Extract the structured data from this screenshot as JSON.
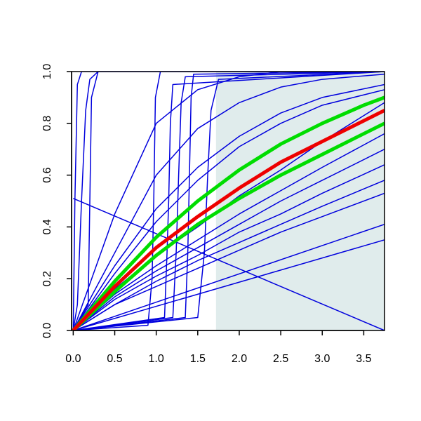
{
  "chart_data": {
    "type": "line",
    "xlim": [
      -0.02,
      3.75
    ],
    "ylim": [
      0,
      1.0
    ],
    "xticks": [
      {
        "value": 0,
        "label": "0.0"
      },
      0.5,
      {
        "value": 1,
        "label": "1.0"
      },
      1.5,
      {
        "value": 2,
        "label": "2.0"
      },
      2.5,
      {
        "value": 3,
        "label": "3.0"
      },
      3.5
    ],
    "yticks": [
      {
        "value": 0,
        "label": "0.0"
      },
      0.2,
      0.4,
      0.6,
      0.8,
      {
        "value": 1,
        "label": "1.0"
      }
    ],
    "shaded_region": {
      "xlim": [
        1.72,
        3.75
      ],
      "color": "#e0ecec"
    },
    "series": [
      {
        "color": "#0000dd",
        "width": 1.5,
        "x": [
          0,
          0.02,
          0.05,
          0.1,
          3.75
        ],
        "values": [
          0,
          0.5,
          0.95,
          1,
          1
        ]
      },
      {
        "color": "#0000dd",
        "width": 1.5,
        "x": [
          0,
          0.05,
          0.1,
          0.15,
          0.2,
          0.3,
          3.75
        ],
        "values": [
          0,
          0.1,
          0.5,
          0.85,
          0.97,
          1,
          1
        ]
      },
      {
        "color": "#0000dd",
        "width": 1.5,
        "x": [
          0,
          0.18,
          0.2,
          0.22,
          0.3,
          3.75
        ],
        "values": [
          0,
          0.1,
          0.5,
          0.9,
          1,
          1
        ]
      },
      {
        "color": "#0000dd",
        "width": 1.5,
        "x": [
          0,
          0.9,
          0.95,
          0.97,
          0.99,
          1.05,
          3.75
        ],
        "values": [
          0,
          0.02,
          0.2,
          0.5,
          0.9,
          1,
          1
        ]
      },
      {
        "color": "#0000dd",
        "width": 1.5,
        "x": [
          0,
          1.1,
          1.13,
          1.15,
          1.17,
          1.2,
          3.75
        ],
        "values": [
          0,
          0.05,
          0.3,
          0.5,
          0.8,
          0.95,
          1
        ]
      },
      {
        "color": "#0000dd",
        "width": 1.5,
        "x": [
          0,
          1.2,
          1.24,
          1.27,
          1.3,
          1.35,
          3.75
        ],
        "values": [
          0,
          0.05,
          0.3,
          0.6,
          0.88,
          0.98,
          1
        ]
      },
      {
        "color": "#0000dd",
        "width": 1.5,
        "x": [
          0,
          1.35,
          1.38,
          1.4,
          1.42,
          1.45,
          3.75
        ],
        "values": [
          0,
          0.05,
          0.3,
          0.6,
          0.9,
          0.99,
          1
        ]
      },
      {
        "color": "#0000dd",
        "width": 1.5,
        "x": [
          0,
          1.5,
          1.58,
          1.62,
          1.66,
          1.75,
          3.75
        ],
        "values": [
          0,
          0.05,
          0.3,
          0.6,
          0.85,
          0.97,
          1
        ]
      },
      {
        "color": "#0000dd",
        "width": 1.5,
        "x": [
          0,
          0.5,
          1,
          1.5,
          2,
          2.5,
          3,
          3.75
        ],
        "values": [
          0,
          0.45,
          0.8,
          0.93,
          0.98,
          1,
          1,
          1
        ]
      },
      {
        "color": "#0000dd",
        "width": 1.5,
        "x": [
          0,
          0.5,
          1,
          1.5,
          2,
          2.5,
          3,
          3.75
        ],
        "values": [
          0,
          0.3,
          0.6,
          0.78,
          0.88,
          0.94,
          0.97,
          0.99
        ]
      },
      {
        "color": "#0000dd",
        "width": 1.5,
        "x": [
          0,
          0.5,
          1,
          1.5,
          2,
          2.5,
          3,
          3.75
        ],
        "values": [
          0,
          0.25,
          0.47,
          0.63,
          0.75,
          0.84,
          0.9,
          0.95
        ]
      },
      {
        "color": "#0000dd",
        "width": 1.5,
        "x": [
          0,
          0.5,
          1,
          1.5,
          2,
          2.5,
          3,
          3.75
        ],
        "values": [
          0,
          0.22,
          0.42,
          0.58,
          0.71,
          0.8,
          0.87,
          0.93
        ]
      },
      {
        "color": "#0000dd",
        "width": 1.5,
        "x": [
          0,
          0.5,
          1,
          1.5,
          2,
          2.5,
          3,
          3.75
        ],
        "values": [
          0,
          0.16,
          0.29,
          0.4,
          0.52,
          0.62,
          0.73,
          0.88
        ]
      },
      {
        "color": "#0000dd",
        "width": 1.5,
        "x": [
          0,
          0.5,
          1,
          1.5,
          2,
          2.5,
          3,
          3.75
        ],
        "values": [
          0,
          0.14,
          0.25,
          0.35,
          0.45,
          0.54,
          0.63,
          0.76
        ]
      },
      {
        "color": "#0000dd",
        "width": 1.5,
        "x": [
          0,
          0.5,
          1,
          1.5,
          2,
          2.5,
          3,
          3.75
        ],
        "values": [
          0,
          0.13,
          0.23,
          0.32,
          0.41,
          0.5,
          0.58,
          0.7
        ]
      },
      {
        "color": "#0000dd",
        "width": 1.5,
        "x": [
          0,
          0.5,
          1,
          1.5,
          2,
          2.5,
          3,
          3.75
        ],
        "values": [
          0,
          0.12,
          0.21,
          0.29,
          0.38,
          0.45,
          0.53,
          0.64
        ]
      },
      {
        "color": "#0000dd",
        "width": 1.5,
        "x": [
          0,
          0.5,
          1,
          1.5,
          2,
          2.5,
          3,
          3.75
        ],
        "values": [
          0,
          0.1,
          0.19,
          0.27,
          0.34,
          0.41,
          0.48,
          0.58
        ]
      },
      {
        "color": "#0000dd",
        "width": 1.5,
        "x": [
          0,
          0.5,
          1,
          1.5,
          2,
          2.5,
          3,
          3.75
        ],
        "values": [
          0,
          0.1,
          0.17,
          0.24,
          0.31,
          0.38,
          0.44,
          0.53
        ]
      },
      {
        "color": "#0000dd",
        "width": 1.5,
        "x": [
          0,
          3.75
        ],
        "values": [
          0,
          0.41
        ]
      },
      {
        "color": "#0000dd",
        "width": 1.5,
        "x": [
          0,
          3.75
        ],
        "values": [
          0,
          0.35
        ]
      },
      {
        "color": "#0000dd",
        "width": 1.5,
        "x": [
          0,
          3.75
        ],
        "values": [
          0.51,
          0
        ]
      },
      {
        "color": "#00dd00",
        "width": 5,
        "x": [
          0,
          0.5,
          1,
          1.5,
          2,
          2.5,
          3,
          3.5,
          3.75
        ],
        "values": [
          0,
          0.19,
          0.36,
          0.5,
          0.62,
          0.72,
          0.8,
          0.87,
          0.9
        ]
      },
      {
        "color": "#00dd00",
        "width": 5,
        "x": [
          0,
          0.5,
          1,
          1.5,
          2,
          2.5,
          3,
          3.5,
          3.75
        ],
        "values": [
          0,
          0.15,
          0.29,
          0.41,
          0.51,
          0.6,
          0.68,
          0.76,
          0.8
        ]
      },
      {
        "color": "#ee0000",
        "width": 5,
        "x": [
          0,
          0.5,
          1,
          1.5,
          2,
          2.5,
          3,
          3.5,
          3.75
        ],
        "values": [
          0,
          0.17,
          0.32,
          0.44,
          0.55,
          0.65,
          0.73,
          0.81,
          0.85
        ]
      }
    ]
  }
}
